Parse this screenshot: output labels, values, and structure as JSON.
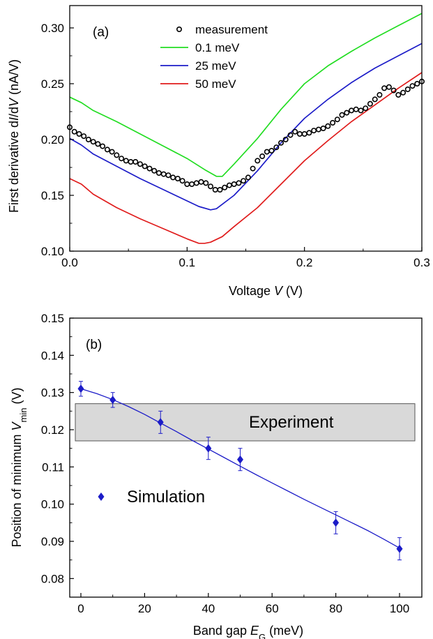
{
  "chart_data": [
    {
      "type": "line",
      "panel_label": "(a)",
      "xlabel": {
        "pre": "Voltage ",
        "italic": "V",
        "post": " (V)"
      },
      "ylabel": {
        "pre": "First derivative d",
        "i1": "I",
        "mid": "/d",
        "i2": "V",
        "post": " (nA/V)"
      },
      "xlim": [
        0.0,
        0.3
      ],
      "ylim": [
        0.1,
        0.32
      ],
      "x_ticks": [
        0.0,
        0.1,
        0.2,
        0.3
      ],
      "x_tick_labels": [
        "0.0",
        "0.1",
        "0.2",
        "0.3"
      ],
      "y_ticks": [
        0.1,
        0.15,
        0.2,
        0.25,
        0.3
      ],
      "y_tick_labels": [
        "0.10",
        "0.15",
        "0.20",
        "0.25",
        "0.30"
      ],
      "legend_position": "top",
      "series": [
        {
          "name": "measurement",
          "kind": "scatter",
          "color": "#000000",
          "x": [
            0.0,
            0.004,
            0.008,
            0.012,
            0.016,
            0.02,
            0.024,
            0.028,
            0.032,
            0.036,
            0.04,
            0.044,
            0.048,
            0.052,
            0.056,
            0.06,
            0.064,
            0.068,
            0.072,
            0.076,
            0.08,
            0.084,
            0.088,
            0.092,
            0.096,
            0.1,
            0.104,
            0.108,
            0.112,
            0.116,
            0.12,
            0.124,
            0.128,
            0.132,
            0.136,
            0.14,
            0.144,
            0.148,
            0.152,
            0.156,
            0.16,
            0.164,
            0.168,
            0.172,
            0.176,
            0.18,
            0.184,
            0.188,
            0.192,
            0.196,
            0.2,
            0.204,
            0.208,
            0.212,
            0.216,
            0.22,
            0.224,
            0.228,
            0.232,
            0.236,
            0.24,
            0.244,
            0.248,
            0.252,
            0.256,
            0.26,
            0.264,
            0.268,
            0.272,
            0.276,
            0.28,
            0.284,
            0.288,
            0.292,
            0.296,
            0.3
          ],
          "y": [
            0.211,
            0.207,
            0.205,
            0.203,
            0.2,
            0.198,
            0.196,
            0.194,
            0.191,
            0.189,
            0.186,
            0.183,
            0.181,
            0.18,
            0.18,
            0.178,
            0.176,
            0.174,
            0.172,
            0.17,
            0.169,
            0.168,
            0.166,
            0.165,
            0.163,
            0.16,
            0.16,
            0.161,
            0.162,
            0.161,
            0.158,
            0.155,
            0.155,
            0.157,
            0.159,
            0.16,
            0.161,
            0.163,
            0.166,
            0.174,
            0.181,
            0.185,
            0.189,
            0.19,
            0.193,
            0.197,
            0.2,
            0.204,
            0.207,
            0.205,
            0.205,
            0.206,
            0.208,
            0.209,
            0.21,
            0.212,
            0.215,
            0.218,
            0.222,
            0.224,
            0.226,
            0.227,
            0.226,
            0.228,
            0.232,
            0.236,
            0.24,
            0.246,
            0.247,
            0.244,
            0.24,
            0.242,
            0.245,
            0.248,
            0.25,
            0.252
          ]
        },
        {
          "name": "0.1 meV",
          "kind": "line",
          "color": "#22dd22",
          "x": [
            0.0,
            0.01,
            0.02,
            0.04,
            0.06,
            0.08,
            0.1,
            0.115,
            0.125,
            0.13,
            0.14,
            0.16,
            0.18,
            0.2,
            0.22,
            0.24,
            0.26,
            0.28,
            0.3
          ],
          "y": [
            0.238,
            0.233,
            0.226,
            0.216,
            0.205,
            0.194,
            0.183,
            0.173,
            0.167,
            0.167,
            0.178,
            0.201,
            0.227,
            0.25,
            0.266,
            0.279,
            0.291,
            0.302,
            0.313
          ]
        },
        {
          "name": "25 meV",
          "kind": "line",
          "color": "#1c1cc8",
          "x": [
            0.0,
            0.01,
            0.02,
            0.04,
            0.06,
            0.08,
            0.1,
            0.11,
            0.12,
            0.125,
            0.14,
            0.16,
            0.18,
            0.2,
            0.22,
            0.24,
            0.26,
            0.28,
            0.3
          ],
          "y": [
            0.201,
            0.195,
            0.187,
            0.176,
            0.165,
            0.155,
            0.145,
            0.14,
            0.137,
            0.138,
            0.15,
            0.172,
            0.197,
            0.219,
            0.236,
            0.251,
            0.264,
            0.275,
            0.286
          ]
        },
        {
          "name": "50 meV",
          "kind": "line",
          "color": "#e01c1c",
          "x": [
            0.0,
            0.01,
            0.02,
            0.04,
            0.06,
            0.08,
            0.1,
            0.11,
            0.115,
            0.12,
            0.13,
            0.14,
            0.16,
            0.18,
            0.2,
            0.22,
            0.24,
            0.26,
            0.28,
            0.3
          ],
          "y": [
            0.165,
            0.16,
            0.151,
            0.139,
            0.129,
            0.12,
            0.111,
            0.107,
            0.107,
            0.108,
            0.113,
            0.122,
            0.139,
            0.16,
            0.181,
            0.199,
            0.216,
            0.231,
            0.246,
            0.26
          ]
        }
      ]
    },
    {
      "type": "scatter",
      "panel_label": "(b)",
      "xlabel": {
        "pre": "Band gap ",
        "italic": "E",
        "sub": "G",
        "post": " (meV)"
      },
      "ylabel": {
        "pre": "Position of minimum ",
        "italic": "V",
        "sub": "min",
        "post": " (V)"
      },
      "xlim": [
        -3.5,
        107
      ],
      "ylim": [
        0.075,
        0.15
      ],
      "x_ticks": [
        0,
        20,
        40,
        60,
        80,
        100
      ],
      "x_tick_labels": [
        "0",
        "20",
        "40",
        "60",
        "80",
        "100"
      ],
      "y_ticks": [
        0.08,
        0.09,
        0.1,
        0.11,
        0.12,
        0.13,
        0.14,
        0.15
      ],
      "y_tick_labels": [
        "0.08",
        "0.09",
        "0.10",
        "0.11",
        "0.12",
        "0.13",
        "0.14",
        "0.15"
      ],
      "experiment_band": {
        "label": "Experiment",
        "y_range": [
          0.117,
          0.127
        ],
        "fill": "#d9d9d9"
      },
      "series": [
        {
          "name": "Simulation",
          "kind": "scatter",
          "marker": "diamond",
          "color": "#1c1cc8",
          "x": [
            0,
            10,
            25,
            40,
            50,
            80,
            100
          ],
          "y": [
            0.131,
            0.128,
            0.122,
            0.115,
            0.112,
            0.095,
            0.088
          ],
          "error": [
            0.002,
            0.002,
            0.003,
            0.003,
            0.003,
            0.003,
            0.003
          ]
        }
      ],
      "fit_line": {
        "color": "#1c1cc8",
        "x": [
          0,
          5,
          10,
          15,
          20,
          25,
          30,
          35,
          40,
          45,
          50,
          55,
          60,
          65,
          70,
          75,
          80,
          85,
          90,
          95,
          100
        ],
        "y": [
          0.131,
          0.1297,
          0.1281,
          0.1262,
          0.1241,
          0.1218,
          0.1195,
          0.1171,
          0.1148,
          0.1125,
          0.1102,
          0.1079,
          0.1057,
          0.1035,
          0.1013,
          0.0992,
          0.0971,
          0.095,
          0.0929,
          0.0906,
          0.0882
        ]
      }
    }
  ]
}
